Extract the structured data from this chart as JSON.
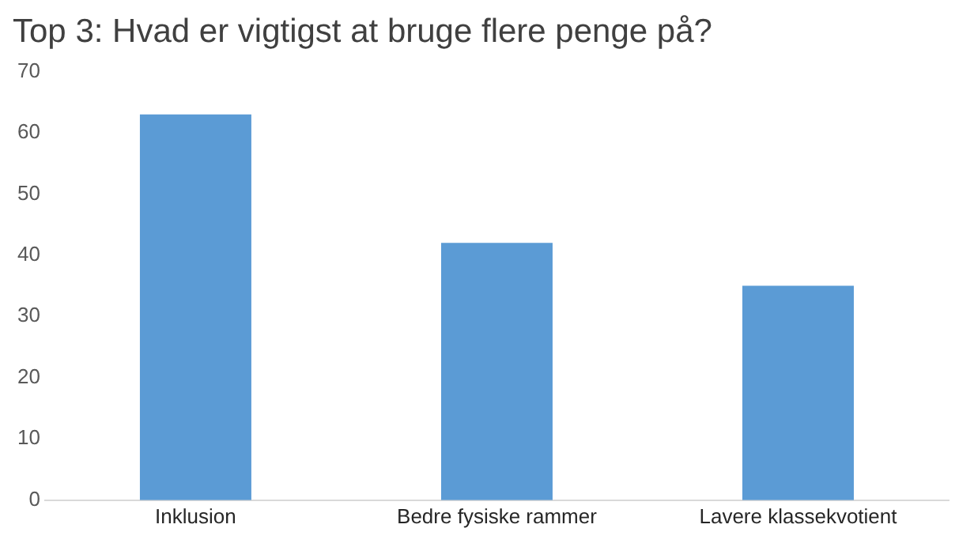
{
  "chart_data": {
    "type": "bar",
    "title": "Top 3: Hvad er vigtigst at bruge flere penge på?",
    "categories": [
      "Inklusion",
      "Bedre fysiske rammer",
      "Lavere klassekvotient"
    ],
    "values": [
      63,
      42,
      35
    ],
    "color": "#5b9bd5",
    "ylim": [
      0,
      70
    ],
    "yticks": [
      0,
      10,
      20,
      30,
      40,
      50,
      60,
      70
    ],
    "grid": false,
    "legend": false
  }
}
